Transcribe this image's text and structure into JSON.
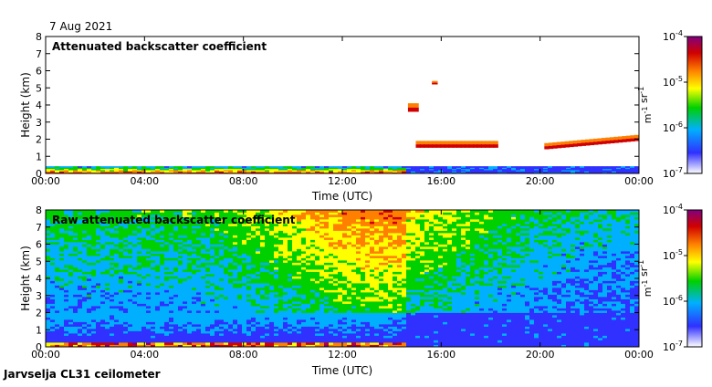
{
  "header": {
    "date": "7 Aug 2021"
  },
  "footer": {
    "station": "Jarvselja CL31 ceilometer"
  },
  "chart_data": [
    {
      "type": "heatmap",
      "id": "top",
      "title": "Attenuated backscatter coefficient",
      "xlabel": "Time (UTC)",
      "ylabel": "Height (km)",
      "xlim": [
        0,
        24
      ],
      "ylim": [
        0,
        8
      ],
      "xticks": [
        "00:00",
        "04:00",
        "08:00",
        "12:00",
        "16:00",
        "20:00",
        "00:00"
      ],
      "yticks": [
        "0",
        "1",
        "2",
        "3",
        "4",
        "5",
        "6",
        "7",
        "8"
      ],
      "colorbar": {
        "label": "m-1 sr-1",
        "ticks": [
          "10-4",
          "10-5",
          "10-6",
          "10-7"
        ],
        "range_log10": [
          -7,
          -4
        ],
        "colors": [
          "#ffffff",
          "#2020ff",
          "#00b0ff",
          "#00d000",
          "#ffff00",
          "#ff8000",
          "#d00000",
          "#800080"
        ]
      },
      "features": [
        {
          "name": "boundary layer",
          "t_start": 0,
          "t_end": 14.5,
          "h_bottom": 0.0,
          "h_top": 0.4
        },
        {
          "name": "night cloud layer",
          "t_start": 14.5,
          "t_end": 24,
          "h_bottom": 0.1,
          "h_top": 0.4
        },
        {
          "name": "cloud layer 1",
          "t_start": 15.0,
          "t_end": 18.3,
          "h_bottom": 1.5,
          "h_top": 1.9
        },
        {
          "name": "rising cloud layer",
          "t_start": 20.2,
          "t_end": 24,
          "h_bottom": 1.4,
          "h_top": 2.2
        },
        {
          "name": "high cloud patch",
          "t_start": 14.7,
          "t_end": 15.1,
          "h_bottom": 3.6,
          "h_top": 4.1
        },
        {
          "name": "high cloud speck",
          "t_start": 15.7,
          "t_end": 15.9,
          "h_bottom": 5.2,
          "h_top": 5.4
        }
      ]
    },
    {
      "type": "heatmap",
      "id": "bottom",
      "title": "Raw attenuated backscatter coefficient",
      "xlabel": "Time (UTC)",
      "ylabel": "Height (km)",
      "xlim": [
        0,
        24
      ],
      "ylim": [
        0,
        8
      ],
      "xticks": [
        "00:00",
        "04:00",
        "08:00",
        "12:00",
        "16:00",
        "20:00",
        "00:00"
      ],
      "yticks": [
        "0",
        "1",
        "2",
        "3",
        "4",
        "5",
        "6",
        "7",
        "8"
      ],
      "colorbar": {
        "label": "m-1 sr-1",
        "ticks": [
          "10-4",
          "10-5",
          "10-6",
          "10-7"
        ],
        "range_log10": [
          -7,
          -4
        ],
        "colors": [
          "#ffffff",
          "#2020ff",
          "#00b0ff",
          "#00d000",
          "#ffff00",
          "#ff8000",
          "#d00000",
          "#800080"
        ]
      },
      "noise_profile": {
        "description": "noise level increases with height; daytime noise stronger",
        "peak_time": 14.0,
        "low_noise_height": 2.0
      }
    }
  ]
}
